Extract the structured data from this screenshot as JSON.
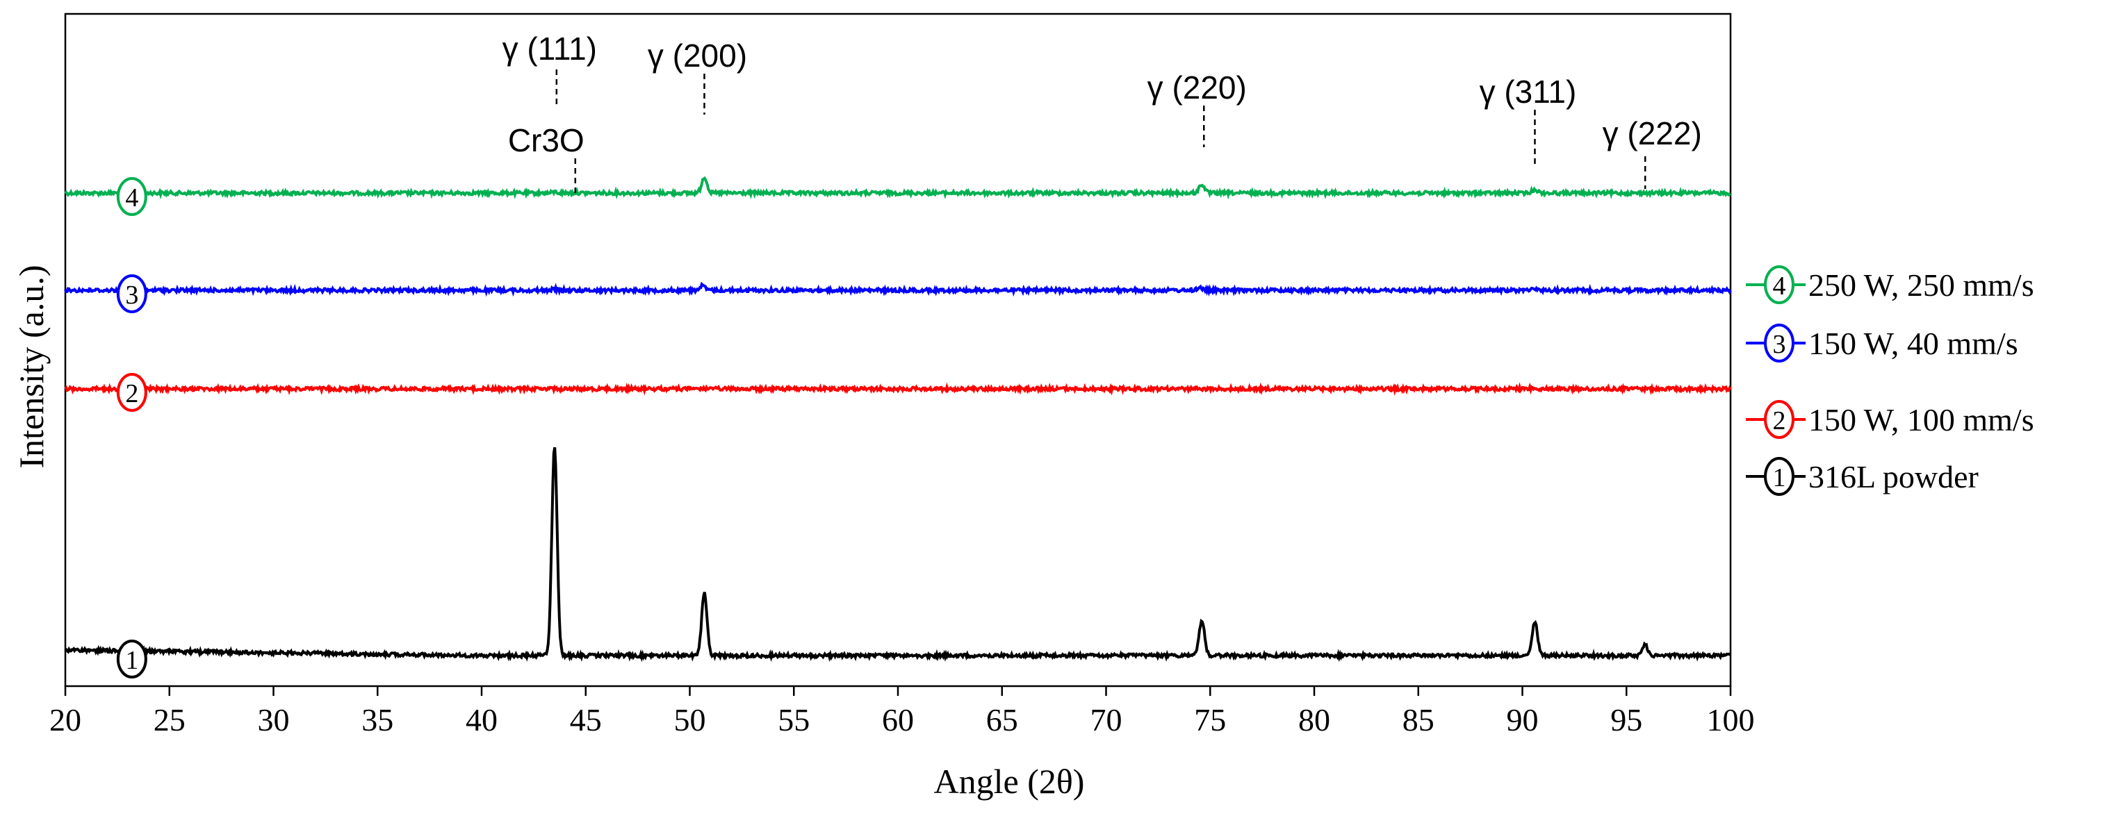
{
  "chart_data": {
    "type": "line",
    "xlabel": "Angle (2θ)",
    "ylabel": "Intensity (a.u.)",
    "xlim": [
      20,
      100
    ],
    "x_ticks": [
      "20",
      "25",
      "30",
      "35",
      "40",
      "45",
      "50",
      "55",
      "60",
      "65",
      "70",
      "75",
      "80",
      "85",
      "90",
      "95",
      "100"
    ],
    "grid": false,
    "legend_position": "right",
    "series": [
      {
        "id": "s4",
        "name": "250 W, 250 mm/s",
        "marker": "4",
        "color": "#00b050",
        "baseline": 1.0,
        "height": 1.0,
        "peaks": [
          [
            43.5,
            0.015
          ],
          [
            44.5,
            0.005
          ],
          [
            50.7,
            0.22
          ],
          [
            74.6,
            0.12
          ],
          [
            90.6,
            0.05
          ]
        ]
      },
      {
        "id": "s3",
        "name": "150 W, 40 mm/s",
        "marker": "3",
        "color": "#0000ff",
        "baseline": 1.0,
        "height": 1.0,
        "peaks": [
          [
            43.5,
            0.03
          ],
          [
            50.6,
            0.11
          ],
          [
            74.5,
            0.07
          ],
          [
            90.5,
            0.06
          ]
        ]
      },
      {
        "id": "s2",
        "name": "150 W, 100 mm/s",
        "marker": "2",
        "color": "#ff0000",
        "baseline": 1.0,
        "height": 1.0,
        "peaks": [
          [
            43.4,
            0.015
          ],
          [
            50.5,
            0.04
          ],
          [
            74.4,
            0.025
          ],
          [
            90.4,
            0.025
          ]
        ]
      },
      {
        "id": "s1",
        "name": "316L powder",
        "marker": "1",
        "color": "#000000",
        "baseline": 1.0,
        "height": 1.0,
        "peaks": [
          [
            43.5,
            1.0
          ],
          [
            50.7,
            0.3
          ],
          [
            74.6,
            0.17
          ],
          [
            90.6,
            0.16
          ],
          [
            95.9,
            0.05
          ]
        ]
      }
    ],
    "annotations": [
      {
        "id": "a111",
        "text": "γ (111)",
        "x": 43.6
      },
      {
        "id": "a200",
        "text": "γ (200)",
        "x": 50.7
      },
      {
        "id": "a220",
        "text": "γ (220)",
        "x": 74.7
      },
      {
        "id": "a311",
        "text": "γ (311)",
        "x": 90.6
      },
      {
        "id": "a222",
        "text": "γ (222)",
        "x": 95.9
      },
      {
        "id": "acr",
        "text": "Cr3O",
        "x": 44.5
      }
    ]
  }
}
